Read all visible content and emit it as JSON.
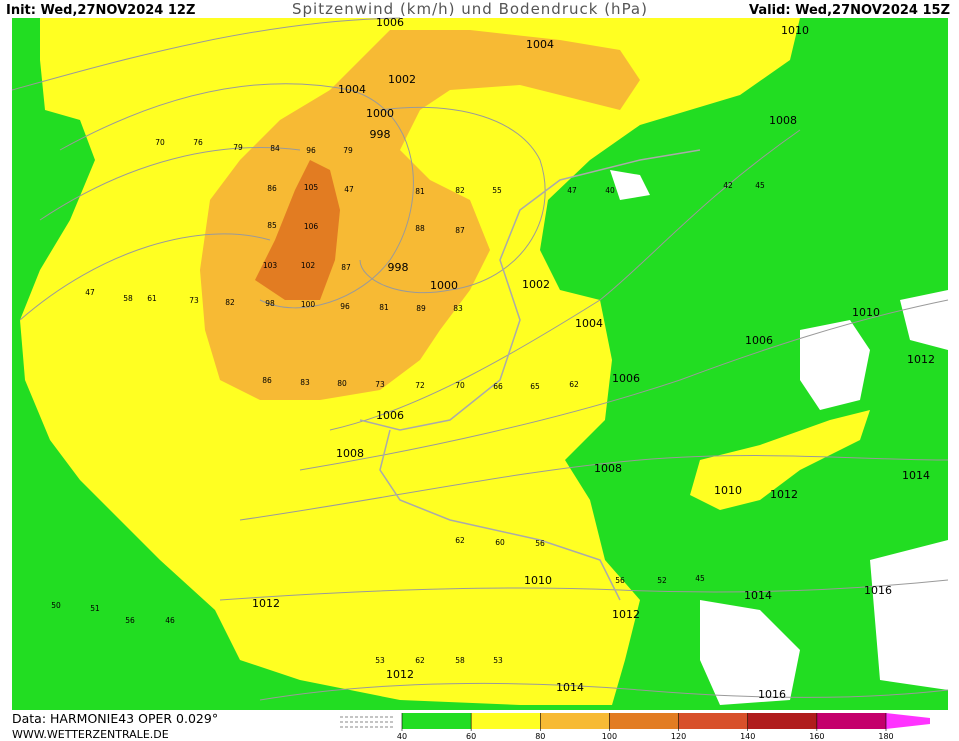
{
  "header": {
    "init": "Init: Wed,27NOV2024 12Z",
    "title": "Spitzenwind (km/h) und Bodendruck (hPa)",
    "valid": "Valid: Wed,27NOV2024 15Z"
  },
  "footer": {
    "data": "Data: HARMONIE43 OPER 0.029°",
    "site": "WWW.WETTERZENTRALE.DE"
  },
  "colorbar": {
    "ticks": [
      40,
      60,
      80,
      100,
      120,
      140,
      160,
      180
    ],
    "colors": [
      "#22dd22",
      "#ffff22",
      "#f7ba34",
      "#e27c22",
      "#d8502a",
      "#b01c1c",
      "#c4006c"
    ],
    "over_color": "#ff33ff"
  },
  "isobar_labels": [
    "1006",
    "1004",
    "1002",
    "1004",
    "1000",
    "998",
    "1010",
    "1008",
    "998",
    "1000",
    "1002",
    "1004",
    "1006",
    "1006",
    "1008",
    "1008",
    "1010",
    "1012",
    "1006",
    "1010",
    "1012",
    "1014",
    "1010",
    "1012",
    "1012",
    "1014",
    "1016",
    "1012",
    "1014",
    "1016"
  ],
  "wind_labels": [
    "70",
    "76",
    "79",
    "84",
    "96",
    "79",
    "86",
    "105",
    "47",
    "85",
    "106",
    "103",
    "102",
    "87",
    "98",
    "100",
    "96",
    "81",
    "89",
    "83",
    "88",
    "87",
    "81",
    "82",
    "55",
    "47",
    "40",
    "42",
    "45",
    "47",
    "58",
    "61",
    "73",
    "82",
    "86",
    "83",
    "80",
    "73",
    "72",
    "70",
    "66",
    "65",
    "62",
    "56",
    "52",
    "45",
    "56",
    "46",
    "50",
    "51",
    "62",
    "60",
    "56",
    "53",
    "62",
    "58",
    "53"
  ]
}
